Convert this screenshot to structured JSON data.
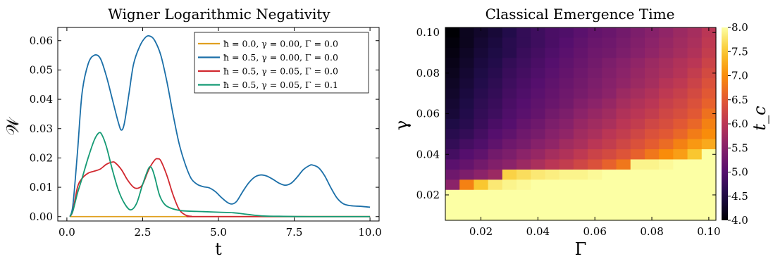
{
  "chart_data": [
    {
      "type": "line",
      "title": "Wigner Logarithmic Negativity",
      "xlabel": "t",
      "ylabel": "𝒲",
      "xlim": [
        -0.3,
        10.3
      ],
      "ylim": [
        -0.0015,
        0.0645
      ],
      "xticks": [
        0.0,
        2.5,
        5.0,
        7.5,
        10.0
      ],
      "xtick_labels": [
        "0.0",
        "2.5",
        "5.0",
        "7.5",
        "10.0"
      ],
      "yticks": [
        0.0,
        0.01,
        0.02,
        0.03,
        0.04,
        0.05,
        0.06
      ],
      "ytick_labels": [
        "0.00",
        "0.01",
        "0.02",
        "0.03",
        "0.04",
        "0.05",
        "0.06"
      ],
      "grid": false,
      "legend_position": "top-right",
      "series": [
        {
          "name": "ħ = 0.0, γ = 0.00, Γ = 0.0",
          "color": "#e0a020",
          "points": [
            [
              0.1,
              0.0
            ],
            [
              10.0,
              0.0
            ]
          ]
        },
        {
          "name": "ħ = 0.5, γ = 0.00, Γ = 0.0",
          "color": "#1b6fa8",
          "points": [
            [
              0.1,
              0.0
            ],
            [
              0.2,
              0.004
            ],
            [
              0.35,
              0.022
            ],
            [
              0.5,
              0.042
            ],
            [
              0.7,
              0.052
            ],
            [
              0.9,
              0.055
            ],
            [
              1.1,
              0.054
            ],
            [
              1.3,
              0.048
            ],
            [
              1.5,
              0.04
            ],
            [
              1.7,
              0.032
            ],
            [
              1.8,
              0.0295
            ],
            [
              1.9,
              0.032
            ],
            [
              2.05,
              0.042
            ],
            [
              2.2,
              0.052
            ],
            [
              2.4,
              0.058
            ],
            [
              2.6,
              0.0612
            ],
            [
              2.75,
              0.0615
            ],
            [
              2.9,
              0.06
            ],
            [
              3.1,
              0.055
            ],
            [
              3.3,
              0.046
            ],
            [
              3.5,
              0.035
            ],
            [
              3.7,
              0.025
            ],
            [
              3.9,
              0.018
            ],
            [
              4.1,
              0.013
            ],
            [
              4.3,
              0.011
            ],
            [
              4.5,
              0.0102
            ],
            [
              4.7,
              0.0098
            ],
            [
              4.9,
              0.0085
            ],
            [
              5.1,
              0.0065
            ],
            [
              5.3,
              0.0048
            ],
            [
              5.45,
              0.0043
            ],
            [
              5.6,
              0.0052
            ],
            [
              5.8,
              0.0085
            ],
            [
              6.0,
              0.0115
            ],
            [
              6.2,
              0.0135
            ],
            [
              6.4,
              0.0142
            ],
            [
              6.6,
              0.0138
            ],
            [
              6.8,
              0.0127
            ],
            [
              7.0,
              0.0114
            ],
            [
              7.2,
              0.0107
            ],
            [
              7.4,
              0.0114
            ],
            [
              7.6,
              0.0135
            ],
            [
              7.8,
              0.016
            ],
            [
              8.0,
              0.0174
            ],
            [
              8.1,
              0.0176
            ],
            [
              8.3,
              0.0167
            ],
            [
              8.5,
              0.014
            ],
            [
              8.7,
              0.01
            ],
            [
              8.9,
              0.0065
            ],
            [
              9.1,
              0.0045
            ],
            [
              9.3,
              0.0038
            ],
            [
              9.5,
              0.0036
            ],
            [
              9.7,
              0.0035
            ],
            [
              10.0,
              0.0032
            ]
          ]
        },
        {
          "name": "ħ = 0.5, γ = 0.05, Γ = 0.0",
          "color": "#d1282f",
          "points": [
            [
              0.1,
              0.0
            ],
            [
              0.2,
              0.002
            ],
            [
              0.35,
              0.01
            ],
            [
              0.5,
              0.013
            ],
            [
              0.7,
              0.0148
            ],
            [
              0.9,
              0.0155
            ],
            [
              1.1,
              0.0162
            ],
            [
              1.3,
              0.0178
            ],
            [
              1.5,
              0.0186
            ],
            [
              1.6,
              0.0183
            ],
            [
              1.8,
              0.016
            ],
            [
              2.0,
              0.0125
            ],
            [
              2.2,
              0.01
            ],
            [
              2.35,
              0.0097
            ],
            [
              2.5,
              0.011
            ],
            [
              2.7,
              0.016
            ],
            [
              2.9,
              0.0193
            ],
            [
              3.0,
              0.0197
            ],
            [
              3.1,
              0.019
            ],
            [
              3.3,
              0.014
            ],
            [
              3.5,
              0.0075
            ],
            [
              3.7,
              0.0025
            ],
            [
              3.9,
              0.0006
            ],
            [
              4.1,
              0.0001
            ],
            [
              4.5,
              0.0
            ],
            [
              10.0,
              0.0
            ]
          ]
        },
        {
          "name": "ħ = 0.5, γ = 0.05, Γ = 0.1",
          "color": "#159a74",
          "points": [
            [
              0.1,
              0.0
            ],
            [
              0.2,
              0.002
            ],
            [
              0.35,
              0.008
            ],
            [
              0.5,
              0.013
            ],
            [
              0.7,
              0.02
            ],
            [
              0.9,
              0.026
            ],
            [
              1.05,
              0.0285
            ],
            [
              1.15,
              0.028
            ],
            [
              1.3,
              0.024
            ],
            [
              1.5,
              0.016
            ],
            [
              1.7,
              0.009
            ],
            [
              1.9,
              0.0045
            ],
            [
              2.1,
              0.0023
            ],
            [
              2.3,
              0.0045
            ],
            [
              2.5,
              0.011
            ],
            [
              2.7,
              0.0165
            ],
            [
              2.8,
              0.0165
            ],
            [
              2.9,
              0.0135
            ],
            [
              3.05,
              0.0075
            ],
            [
              3.2,
              0.0045
            ],
            [
              3.4,
              0.003
            ],
            [
              3.8,
              0.002
            ],
            [
              4.5,
              0.0017
            ],
            [
              5.0,
              0.0015
            ],
            [
              5.5,
              0.0013
            ],
            [
              6.0,
              0.0007
            ],
            [
              6.5,
              0.0002
            ],
            [
              7.0,
              0.0001
            ],
            [
              8.0,
              0.0
            ],
            [
              10.0,
              0.0
            ]
          ]
        }
      ]
    },
    {
      "type": "heatmap",
      "title": "Classical Emergence Time",
      "xlabel": "Γ",
      "ylabel": "γ",
      "colorbar_label": "t_c",
      "x_start": 0.0075,
      "x_end": 0.1025,
      "x_cells": 19,
      "y_start": 0.0075,
      "y_end": 0.1025,
      "y_cells": 19,
      "xticks": [
        0.02,
        0.04,
        0.06,
        0.08,
        0.1
      ],
      "xtick_labels": [
        "0.02",
        "0.04",
        "0.06",
        "0.08",
        "0.10"
      ],
      "yticks": [
        0.02,
        0.04,
        0.06,
        0.08,
        0.1
      ],
      "ytick_labels": [
        "0.02",
        "0.04",
        "0.06",
        "0.08",
        "0.10"
      ],
      "colorbar_range": [
        4.0,
        8.0
      ],
      "colorbar_ticks": [
        4.0,
        4.5,
        5.0,
        5.5,
        6.0,
        6.5,
        7.0,
        7.5,
        8.0
      ],
      "colorbar_tick_labels": [
        "4.0",
        "4.5",
        "5.0",
        "5.5",
        "6.0",
        "6.5",
        "7.0",
        "7.5",
        "8.0"
      ],
      "colormap": "inferno",
      "values_top_row_first": [
        [
          4.0,
          4.2,
          4.3,
          4.4,
          4.55,
          4.7,
          4.8,
          4.9,
          4.95,
          5.05,
          5.15,
          5.2,
          5.3,
          5.4,
          5.5,
          5.6,
          5.7,
          5.8,
          6.0
        ],
        [
          4.05,
          4.2,
          4.35,
          4.45,
          4.6,
          4.7,
          4.8,
          4.9,
          5.0,
          5.1,
          5.2,
          5.25,
          5.35,
          5.45,
          5.55,
          5.65,
          5.75,
          5.85,
          6.05
        ],
        [
          4.1,
          4.25,
          4.4,
          4.5,
          4.6,
          4.75,
          4.85,
          4.95,
          5.05,
          5.15,
          5.25,
          5.3,
          5.4,
          5.5,
          5.6,
          5.7,
          5.8,
          5.9,
          6.1
        ],
        [
          4.15,
          4.3,
          4.45,
          4.55,
          4.7,
          4.8,
          4.9,
          5.0,
          5.1,
          5.2,
          5.3,
          5.4,
          5.5,
          5.6,
          5.7,
          5.8,
          5.9,
          6.0,
          6.2
        ],
        [
          4.2,
          4.35,
          4.5,
          4.6,
          4.75,
          4.85,
          4.95,
          5.05,
          5.15,
          5.25,
          5.35,
          5.45,
          5.55,
          5.65,
          5.75,
          5.85,
          5.95,
          6.1,
          6.3
        ],
        [
          4.25,
          4.4,
          4.55,
          4.65,
          4.8,
          4.9,
          5.0,
          5.1,
          5.2,
          5.3,
          5.4,
          5.5,
          5.6,
          5.7,
          5.8,
          5.95,
          6.05,
          6.2,
          6.4
        ],
        [
          4.3,
          4.45,
          4.6,
          4.7,
          4.85,
          4.95,
          5.05,
          5.15,
          5.25,
          5.35,
          5.45,
          5.55,
          5.7,
          5.8,
          5.9,
          6.05,
          6.15,
          6.3,
          6.5
        ],
        [
          4.35,
          4.5,
          4.65,
          4.75,
          4.9,
          5.0,
          5.1,
          5.2,
          5.3,
          5.45,
          5.55,
          5.65,
          5.8,
          5.9,
          6.0,
          6.15,
          6.25,
          6.4,
          6.6
        ],
        [
          4.4,
          4.55,
          4.7,
          4.8,
          4.95,
          5.05,
          5.15,
          5.3,
          5.4,
          5.55,
          5.65,
          5.75,
          5.9,
          6.0,
          6.1,
          6.25,
          6.35,
          6.5,
          6.75
        ],
        [
          4.5,
          4.6,
          4.75,
          4.9,
          5.0,
          5.15,
          5.25,
          5.4,
          5.5,
          5.65,
          5.75,
          5.85,
          6.0,
          6.1,
          6.25,
          6.35,
          6.5,
          6.65,
          6.9
        ],
        [
          4.6,
          4.7,
          4.85,
          5.0,
          5.1,
          5.25,
          5.35,
          5.5,
          5.6,
          5.75,
          5.85,
          6.0,
          6.1,
          6.25,
          6.4,
          6.5,
          6.65,
          6.85,
          7.0
        ],
        [
          4.7,
          4.85,
          4.95,
          5.1,
          5.25,
          5.35,
          5.5,
          5.6,
          5.75,
          5.85,
          6.0,
          6.1,
          6.25,
          6.4,
          6.55,
          6.7,
          6.9,
          7.1,
          7.25
        ],
        [
          4.85,
          5.0,
          5.1,
          5.3,
          5.4,
          5.55,
          5.65,
          5.8,
          5.9,
          6.05,
          6.2,
          6.3,
          6.45,
          6.6,
          6.8,
          7.0,
          7.15,
          7.5,
          8.0
        ],
        [
          5.05,
          5.15,
          5.3,
          5.45,
          5.55,
          5.7,
          5.85,
          6.0,
          6.1,
          6.25,
          6.4,
          6.6,
          6.8,
          7.9,
          7.9,
          7.95,
          8.0,
          8.0,
          8.0
        ],
        [
          5.25,
          5.4,
          5.55,
          5.7,
          7.6,
          7.7,
          7.8,
          7.85,
          7.9,
          7.9,
          7.95,
          8.0,
          8.0,
          8.0,
          8.0,
          8.0,
          8.0,
          8.0,
          8.0
        ],
        [
          5.55,
          6.9,
          7.5,
          7.8,
          7.9,
          7.95,
          8.0,
          8.0,
          8.0,
          8.0,
          8.0,
          8.0,
          8.0,
          8.0,
          8.0,
          8.0,
          8.0,
          8.0,
          8.0
        ],
        [
          8.0,
          8.0,
          8.0,
          8.0,
          8.0,
          8.0,
          8.0,
          8.0,
          8.0,
          8.0,
          8.0,
          8.0,
          8.0,
          8.0,
          8.0,
          8.0,
          8.0,
          8.0,
          8.0
        ],
        [
          8.0,
          8.0,
          8.0,
          8.0,
          8.0,
          8.0,
          8.0,
          8.0,
          8.0,
          8.0,
          8.0,
          8.0,
          8.0,
          8.0,
          8.0,
          8.0,
          8.0,
          8.0,
          8.0
        ],
        [
          8.0,
          8.0,
          8.0,
          8.0,
          8.0,
          8.0,
          8.0,
          8.0,
          8.0,
          8.0,
          8.0,
          8.0,
          8.0,
          8.0,
          8.0,
          8.0,
          8.0,
          8.0,
          8.0
        ]
      ]
    }
  ]
}
